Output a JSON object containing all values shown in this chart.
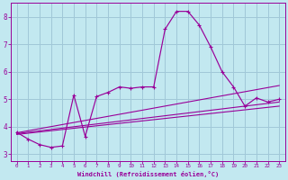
{
  "bg_color": "#c2e8f0",
  "line_color": "#990099",
  "grid_color": "#a0c8d8",
  "xlabel": "Windchill (Refroidissement éolien,°C)",
  "xlim": [
    -0.5,
    23.5
  ],
  "ylim": [
    2.75,
    8.5
  ],
  "yticks": [
    3,
    4,
    5,
    6,
    7,
    8
  ],
  "xticks": [
    0,
    1,
    2,
    3,
    4,
    5,
    6,
    7,
    8,
    9,
    10,
    11,
    12,
    13,
    14,
    15,
    16,
    17,
    18,
    19,
    20,
    21,
    22,
    23
  ],
  "series1_x": [
    0,
    1,
    2,
    3,
    4,
    5,
    6,
    7,
    8,
    9,
    10,
    11,
    12,
    13,
    14,
    15,
    16,
    17,
    18,
    19,
    20,
    21,
    22,
    23
  ],
  "series1_y": [
    3.8,
    3.55,
    3.35,
    3.25,
    3.3,
    5.15,
    3.65,
    5.1,
    5.25,
    5.45,
    5.4,
    5.45,
    5.45,
    7.55,
    8.2,
    8.2,
    7.7,
    6.9,
    6.0,
    5.45,
    4.75,
    5.05,
    4.9,
    5.0
  ],
  "series2_x": [
    0,
    23
  ],
  "series2_y": [
    3.78,
    5.5
  ],
  "series3_x": [
    0,
    23
  ],
  "series3_y": [
    3.75,
    4.9
  ],
  "series4_x": [
    0,
    23
  ],
  "series4_y": [
    3.72,
    4.75
  ]
}
